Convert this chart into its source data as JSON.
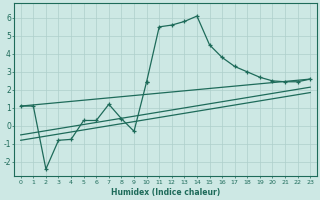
{
  "xlabel": "Humidex (Indice chaleur)",
  "x": [
    0,
    1,
    2,
    3,
    4,
    5,
    6,
    7,
    8,
    9,
    10,
    11,
    12,
    13,
    14,
    15,
    16,
    17,
    18,
    19,
    20,
    21,
    22,
    23
  ],
  "line1": [
    1.1,
    1.1,
    -2.4,
    -0.8,
    -0.75,
    0.3,
    0.3,
    1.2,
    0.4,
    -0.3,
    2.45,
    null,
    null,
    null,
    null,
    null,
    null,
    null,
    null,
    null,
    null,
    null,
    null,
    null
  ],
  "line2": [
    null,
    null,
    null,
    null,
    null,
    null,
    null,
    null,
    null,
    null,
    2.45,
    5.5,
    5.6,
    5.8,
    6.1,
    4.5,
    3.8,
    3.3,
    3.0,
    2.7,
    2.5,
    2.45,
    2.45,
    2.6
  ],
  "line3_x": [
    0,
    23
  ],
  "line3_y": [
    -0.5,
    2.15
  ],
  "line4_x": [
    0,
    23
  ],
  "line4_y": [
    -0.8,
    1.85
  ],
  "line5_x": [
    0,
    23
  ],
  "line5_y": [
    1.1,
    2.6
  ],
  "ylim": [
    -2.8,
    6.8
  ],
  "xlim": [
    -0.5,
    23.5
  ],
  "yticks": [
    -2,
    -1,
    0,
    1,
    2,
    3,
    4,
    5,
    6
  ],
  "xticks": [
    0,
    1,
    2,
    3,
    4,
    5,
    6,
    7,
    8,
    9,
    10,
    11,
    12,
    13,
    14,
    15,
    16,
    17,
    18,
    19,
    20,
    21,
    22,
    23
  ],
  "line_color": "#1e6b5a",
  "bg_color": "#cde8e4",
  "grid_color": "#aecfcb",
  "axes_color": "#1e6b5a"
}
